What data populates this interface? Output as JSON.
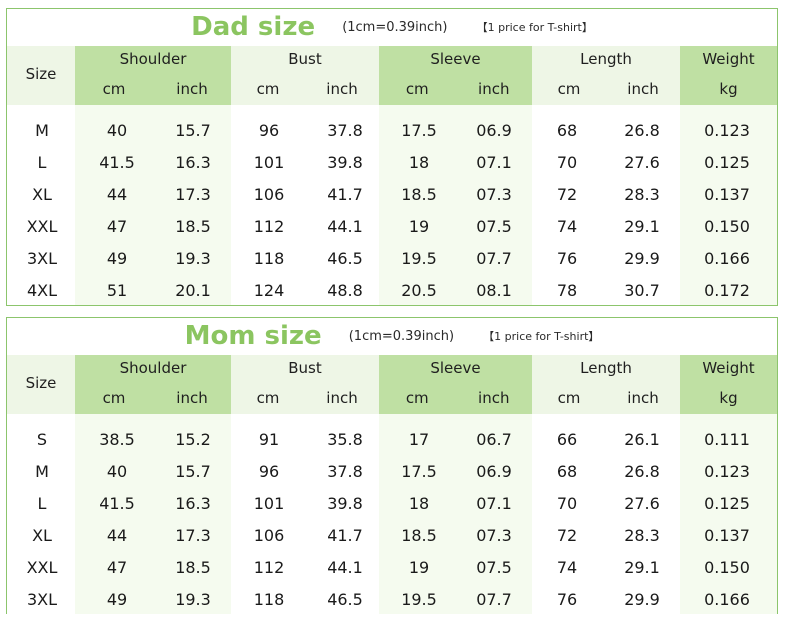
{
  "tables": [
    {
      "id": "dad",
      "title": "Dad size",
      "unit_note": "(1cm=0.39inch)",
      "price_note": "【1 price for T-shirt】",
      "header": {
        "size": "Size",
        "shoulder": "Shoulder",
        "bust": "Bust",
        "sleeve": "Sleeve",
        "length": "Length",
        "weight": "Weight",
        "cm": "cm",
        "inch": "inch",
        "kg": "kg"
      },
      "rows": [
        [
          "M",
          "40",
          "15.7",
          "96",
          "37.8",
          "17.5",
          "06.9",
          "68",
          "26.8",
          "0.123"
        ],
        [
          "L",
          "41.5",
          "16.3",
          "101",
          "39.8",
          "18",
          "07.1",
          "70",
          "27.6",
          "0.125"
        ],
        [
          "XL",
          "44",
          "17.3",
          "106",
          "41.7",
          "18.5",
          "07.3",
          "72",
          "28.3",
          "0.137"
        ],
        [
          "XXL",
          "47",
          "18.5",
          "112",
          "44.1",
          "19",
          "07.5",
          "74",
          "29.1",
          "0.150"
        ],
        [
          "3XL",
          "49",
          "19.3",
          "118",
          "46.5",
          "19.5",
          "07.7",
          "76",
          "29.9",
          "0.166"
        ],
        [
          "4XL",
          "51",
          "20.1",
          "124",
          "48.8",
          "20.5",
          "08.1",
          "78",
          "30.7",
          "0.172"
        ]
      ]
    },
    {
      "id": "mom",
      "title": "Mom size",
      "unit_note": "(1cm=0.39inch)",
      "price_note": "【1 price for T-shirt】",
      "header": {
        "size": "Size",
        "shoulder": "Shoulder",
        "bust": "Bust",
        "sleeve": "Sleeve",
        "length": "Length",
        "weight": "Weight",
        "cm": "cm",
        "inch": "inch",
        "kg": "kg"
      },
      "rows": [
        [
          "S",
          "38.5",
          "15.2",
          "91",
          "35.8",
          "17",
          "06.7",
          "66",
          "26.1",
          "0.111"
        ],
        [
          "M",
          "40",
          "15.7",
          "96",
          "37.8",
          "17.5",
          "06.9",
          "68",
          "26.8",
          "0.123"
        ],
        [
          "L",
          "41.5",
          "16.3",
          "101",
          "39.8",
          "18",
          "07.1",
          "70",
          "27.6",
          "0.125"
        ],
        [
          "XL",
          "44",
          "17.3",
          "106",
          "41.7",
          "18.5",
          "07.3",
          "72",
          "28.3",
          "0.137"
        ],
        [
          "XXL",
          "47",
          "18.5",
          "112",
          "44.1",
          "19",
          "07.5",
          "74",
          "29.1",
          "0.150"
        ],
        [
          "3XL",
          "49",
          "19.3",
          "118",
          "46.5",
          "19.5",
          "07.7",
          "76",
          "29.9",
          "0.166"
        ]
      ]
    }
  ],
  "colors": {
    "title_green": "#8bc560",
    "border_green": "#8cc56c",
    "header_dark": "#bfe0a3",
    "header_light": "#eef6e6",
    "body_tint": "#f5fbef"
  }
}
